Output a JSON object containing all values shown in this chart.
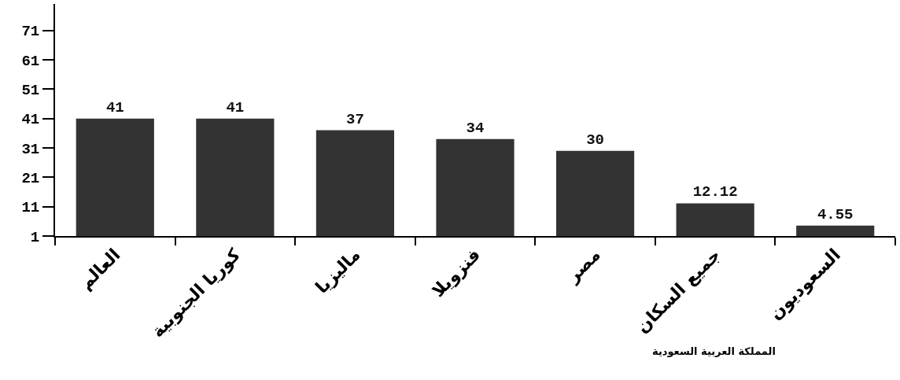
{
  "chart_data": {
    "type": "bar",
    "categories": [
      "العالم",
      "كوريا الجنوبية",
      "ماليزيا",
      "فنزويلا",
      "مصر",
      "جميع السكان",
      "السعوديون"
    ],
    "values": [
      41,
      41,
      37,
      34,
      30,
      12.12,
      4.55
    ],
    "color": "#333333",
    "ylim": [
      1,
      80
    ],
    "yticks": [
      1,
      11,
      21,
      31,
      41,
      51,
      61,
      71
    ],
    "data_labels": true,
    "annotations": [
      "المملكة العربية السعودية"
    ]
  }
}
